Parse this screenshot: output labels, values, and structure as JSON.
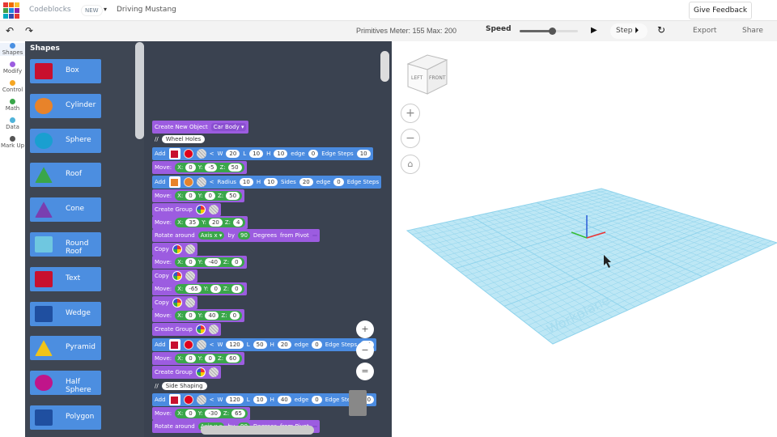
{
  "header": {
    "app": "Codeblocks",
    "badge": "NEW",
    "project": "Driving Mustang",
    "feedback": "Give Feedback",
    "logo_colors": [
      "#e53935",
      "#ef6c00",
      "#fbc02d",
      "#43a047",
      "#1e88e5",
      "#8e24aa",
      "#00acc1",
      "#3949ab",
      "#e53935"
    ]
  },
  "toolbar": {
    "undo": "↶",
    "redo": "↷",
    "meter": "Primitives Meter: 155 Max: 200",
    "speed_label": "Speed",
    "speed_value": 0.55,
    "play": "▶",
    "step": "Step",
    "export": "Export",
    "share": "Share"
  },
  "categories": [
    {
      "label": "Shapes",
      "color": "#4a90e2"
    },
    {
      "label": "Modify",
      "color": "#9c5ce0"
    },
    {
      "label": "Control",
      "color": "#f5a623"
    },
    {
      "label": "Math",
      "color": "#3aa64a"
    },
    {
      "label": "Data",
      "color": "#4fb3d9"
    },
    {
      "label": "Mark Up",
      "color": "#555555"
    }
  ],
  "flyout": {
    "title": "Shapes",
    "items": [
      {
        "label": "Box",
        "color": "#c8102e"
      },
      {
        "label": "Cylinder",
        "color": "#e8832a"
      },
      {
        "label": "Sphere",
        "color": "#1a9fd0"
      },
      {
        "label": "Roof",
        "color": "#3aa64a"
      },
      {
        "label": "Cone",
        "color": "#7a3fb0"
      },
      {
        "label": "Round Roof",
        "color": "#6fc7e0"
      },
      {
        "label": "Text",
        "color": "#c8102e"
      },
      {
        "label": "Wedge",
        "color": "#1f4fa0"
      },
      {
        "label": "Pyramid",
        "color": "#f0c419"
      },
      {
        "label": "Half Sphere",
        "color": "#c0158a"
      },
      {
        "label": "Polygon",
        "color": "#1f4fa0"
      }
    ]
  },
  "blocks": [
    {
      "c": "p",
      "parts": [
        [
          "l",
          "Create New Object"
        ],
        [
          "d",
          "Car Body ▾"
        ]
      ]
    },
    {
      "c": "n",
      "parts": [
        [
          "l",
          "//"
        ],
        [
          "c",
          "Wheel Holes"
        ]
      ]
    },
    {
      "c": "b",
      "parts": [
        [
          "l",
          "Add"
        ],
        [
          "s",
          "#c8102e"
        ],
        [
          "w",
          "#e0001b"
        ],
        [
          "h"
        ],
        [
          "l",
          "<"
        ],
        [
          "l",
          "W"
        ],
        [
          "f",
          "20"
        ],
        [
          "l",
          "L"
        ],
        [
          "f",
          "10"
        ],
        [
          "l",
          "H"
        ],
        [
          "f",
          "10"
        ],
        [
          "l",
          "edge"
        ],
        [
          "f",
          "0"
        ],
        [
          "l",
          "Edge Steps"
        ],
        [
          "f",
          "10"
        ]
      ]
    },
    {
      "c": "p",
      "parts": [
        [
          "l",
          "Move:"
        ],
        [
          "g",
          [
            "X:",
            "0",
            "Y:",
            "-5",
            "Z:",
            "50"
          ]
        ]
      ]
    },
    {
      "c": "b",
      "parts": [
        [
          "l",
          "Add"
        ],
        [
          "s",
          "#e8832a"
        ],
        [
          "w",
          "#e8832a"
        ],
        [
          "h"
        ],
        [
          "l",
          "<"
        ],
        [
          "l",
          "Radius"
        ],
        [
          "f",
          "10"
        ],
        [
          "l",
          "H"
        ],
        [
          "f",
          "10"
        ],
        [
          "l",
          "Sides"
        ],
        [
          "f",
          "20"
        ],
        [
          "l",
          "edge"
        ],
        [
          "f",
          "0"
        ],
        [
          "l",
          "Edge Steps"
        ]
      ]
    },
    {
      "c": "p",
      "parts": [
        [
          "l",
          "Move:"
        ],
        [
          "g",
          [
            "X:",
            "0",
            "Y:",
            "0",
            "Z:",
            "50"
          ]
        ]
      ]
    },
    {
      "c": "p",
      "parts": [
        [
          "l",
          "Create Group"
        ],
        [
          "r"
        ],
        [
          "h"
        ]
      ]
    },
    {
      "c": "p",
      "parts": [
        [
          "l",
          "Move:"
        ],
        [
          "g",
          [
            "X:",
            "35",
            "Y:",
            "20",
            "Z:",
            "4"
          ]
        ]
      ]
    },
    {
      "c": "p",
      "parts": [
        [
          "l",
          "Rotate around"
        ],
        [
          "gd",
          "Axis x ▾"
        ],
        [
          "l",
          "by"
        ],
        [
          "gd",
          "90"
        ],
        [
          "l",
          "Degrees"
        ],
        [
          "l",
          "from Pivot"
        ],
        [
          "d",
          " "
        ]
      ]
    },
    {
      "c": "p",
      "parts": [
        [
          "l",
          "Copy"
        ],
        [
          "r"
        ],
        [
          "h"
        ]
      ]
    },
    {
      "c": "p",
      "parts": [
        [
          "l",
          "Move:"
        ],
        [
          "g",
          [
            "X:",
            "0",
            "Y:",
            "-40",
            "Z:",
            "0"
          ]
        ]
      ]
    },
    {
      "c": "p",
      "parts": [
        [
          "l",
          "Copy"
        ],
        [
          "r"
        ],
        [
          "h"
        ]
      ]
    },
    {
      "c": "p",
      "parts": [
        [
          "l",
          "Move:"
        ],
        [
          "g",
          [
            "X:",
            "-65",
            "Y:",
            "0",
            "Z:",
            "0"
          ]
        ]
      ]
    },
    {
      "c": "p",
      "parts": [
        [
          "l",
          "Copy"
        ],
        [
          "r"
        ],
        [
          "h"
        ]
      ]
    },
    {
      "c": "p",
      "parts": [
        [
          "l",
          "Move:"
        ],
        [
          "g",
          [
            "X:",
            "0",
            "Y:",
            "40",
            "Z:",
            "0"
          ]
        ]
      ]
    },
    {
      "c": "p",
      "parts": [
        [
          "l",
          "Create Group"
        ],
        [
          "r"
        ],
        [
          "h"
        ]
      ]
    },
    {
      "c": "b",
      "parts": [
        [
          "l",
          "Add"
        ],
        [
          "s",
          "#c8102e"
        ],
        [
          "w",
          "#e0001b"
        ],
        [
          "h"
        ],
        [
          "l",
          "<"
        ],
        [
          "l",
          "W"
        ],
        [
          "f",
          "120"
        ],
        [
          "l",
          "L"
        ],
        [
          "f",
          "50"
        ],
        [
          "l",
          "H"
        ],
        [
          "f",
          "20"
        ],
        [
          "l",
          "edge"
        ],
        [
          "f",
          "0"
        ],
        [
          "l",
          "Edge Steps"
        ],
        [
          "f",
          "10"
        ]
      ]
    },
    {
      "c": "p",
      "parts": [
        [
          "l",
          "Move:"
        ],
        [
          "g",
          [
            "X:",
            "0",
            "Y:",
            "0",
            "Z:",
            "60"
          ]
        ]
      ]
    },
    {
      "c": "p",
      "parts": [
        [
          "l",
          "Create Group"
        ],
        [
          "r"
        ],
        [
          "h"
        ]
      ]
    },
    {
      "c": "n",
      "parts": [
        [
          "l",
          "//"
        ],
        [
          "c",
          "Side Shaping"
        ]
      ]
    },
    {
      "c": "b",
      "parts": [
        [
          "l",
          "Add"
        ],
        [
          "s",
          "#c8102e"
        ],
        [
          "w",
          "#e0001b"
        ],
        [
          "h"
        ],
        [
          "l",
          "<"
        ],
        [
          "l",
          "W"
        ],
        [
          "f",
          "120"
        ],
        [
          "l",
          "L"
        ],
        [
          "f",
          "10"
        ],
        [
          "l",
          "H"
        ],
        [
          "f",
          "40"
        ],
        [
          "l",
          "edge"
        ],
        [
          "f",
          "0"
        ],
        [
          "l",
          "Edge Steps"
        ],
        [
          "f",
          "10"
        ]
      ]
    },
    {
      "c": "p",
      "parts": [
        [
          "l",
          "Move:"
        ],
        [
          "g",
          [
            "X:",
            "0",
            "Y:",
            "-30",
            "Z:",
            "65"
          ]
        ]
      ]
    },
    {
      "c": "p",
      "parts": [
        [
          "l",
          "Rotate around"
        ],
        [
          "gd",
          "Axis x ▾"
        ],
        [
          "l",
          "by"
        ],
        [
          "gd",
          "90"
        ],
        [
          "l",
          "Degrees"
        ],
        [
          "l",
          "from Pivot"
        ],
        [
          "d",
          " "
        ]
      ]
    }
  ],
  "workspace_controls": {
    "zoom_in": "+",
    "zoom_out": "−",
    "reset": "="
  },
  "viewport": {
    "viewcube_left": "LEFT",
    "viewcube_front": "FRONT",
    "zoom_in": "+",
    "zoom_out": "−",
    "home": "⌂",
    "workplane_label": "Workplane",
    "grid_color": "#8fd3ec"
  }
}
